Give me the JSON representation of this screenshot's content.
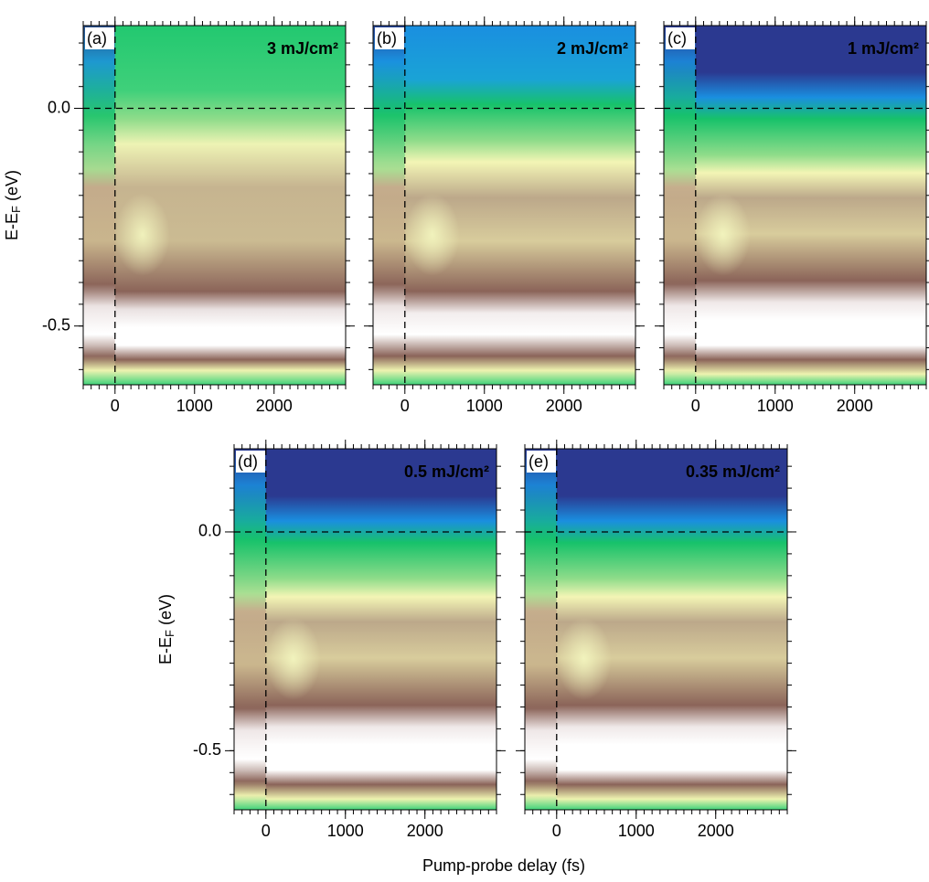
{
  "figure": {
    "xlabel": "Pump-probe delay (fs)"
  },
  "chart_data": [
    {
      "type": "heatmap",
      "panel": "(a)",
      "annotation": "3 mJ/cm²",
      "xlim": [
        -400,
        2900
      ],
      "ylim": [
        -0.635,
        0.19
      ],
      "xticks": [
        0,
        1000,
        2000
      ],
      "yticks": [
        {
          "value": -0.5,
          "label": "-0.5"
        },
        {
          "value": 0,
          "label": "0.0"
        }
      ],
      "ytick_labels": true,
      "ylabel": [
        "E-E",
        "F",
        "(eV)"
      ],
      "minor_x": 100,
      "minor_y": 0.05,
      "dashed": {
        "x": 0,
        "y": 0
      }
    },
    {
      "type": "heatmap",
      "panel": "(b)",
      "annotation": "2 mJ/cm²",
      "xlim": [
        -400,
        2900
      ],
      "ylim": [
        -0.635,
        0.19
      ],
      "xticks": [
        0,
        1000,
        2000
      ],
      "yticks": [
        -0.5,
        0
      ],
      "ytick_labels": false,
      "minor_x": 100,
      "minor_y": 0.05,
      "dashed": {
        "x": 0,
        "y": 0
      }
    },
    {
      "type": "heatmap",
      "panel": "(c)",
      "annotation": "1 mJ/cm²",
      "xlim": [
        -400,
        2900
      ],
      "ylim": [
        -0.635,
        0.19
      ],
      "xticks": [
        0,
        1000,
        2000
      ],
      "yticks": [
        -0.5,
        0
      ],
      "ytick_labels": false,
      "minor_x": 100,
      "minor_y": 0.05,
      "dashed": {
        "x": 0,
        "y": 0
      }
    },
    {
      "type": "heatmap",
      "panel": "(d)",
      "annotation": "0.5 mJ/cm²",
      "xlim": [
        -400,
        2900
      ],
      "ylim": [
        -0.635,
        0.19
      ],
      "xticks": [
        0,
        1000,
        2000
      ],
      "yticks": [
        {
          "value": -0.5,
          "label": "-0.5"
        },
        {
          "value": 0,
          "label": "0.0"
        }
      ],
      "ytick_labels": true,
      "ylabel": [
        "E-E",
        "F",
        "(eV)"
      ],
      "minor_x": 100,
      "minor_y": 0.05,
      "dashed": {
        "x": 0,
        "y": 0
      }
    },
    {
      "type": "heatmap",
      "panel": "(e)",
      "annotation": "0.35 mJ/cm²",
      "xlim": [
        -400,
        2900
      ],
      "ylim": [
        -0.635,
        0.19
      ],
      "xticks": [
        0,
        1000,
        2000
      ],
      "yticks": [
        -0.5,
        0
      ],
      "ytick_labels": false,
      "minor_x": 100,
      "minor_y": 0.05,
      "dashed": {
        "x": 0,
        "y": 0
      }
    }
  ]
}
